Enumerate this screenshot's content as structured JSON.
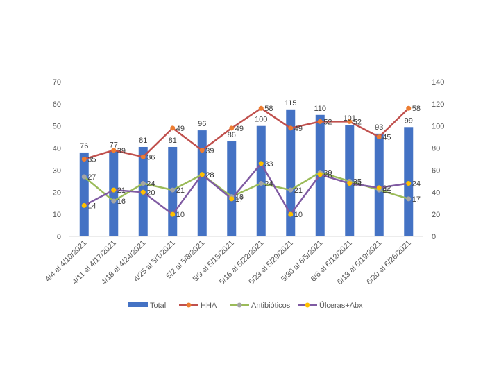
{
  "chart_data": {
    "type": "bar",
    "categories": [
      "4/4 al 4/10/2021",
      "4/11 al 4/17/2021",
      "4/18 al 4/24/2021",
      "4/25 al 5/1/2021",
      "5/2 al 5/8/2021",
      "5/9 al 5/15/2021",
      "5/16 al 5/22/2021",
      "5/23 al 5/29/2021",
      "5/30 al 6/5/2021",
      "6/6 al 6/12/2021",
      "6/13 al 6/19/2021",
      "6/20 al 6/26/2021"
    ],
    "series": [
      {
        "name": "Total",
        "type": "bar",
        "axis": "right",
        "color": "#4472C4",
        "values": [
          76,
          77,
          81,
          81,
          96,
          86,
          100,
          115,
          110,
          101,
          93,
          99
        ],
        "labels": [
          "76",
          "77",
          "81",
          "81",
          "96",
          "86",
          "100",
          "115",
          "110",
          "101",
          "93",
          "99"
        ]
      },
      {
        "name": "HHA",
        "type": "line",
        "axis": "left",
        "color": "#C0504D",
        "marker": "#ED7D31",
        "values": [
          35,
          39,
          36,
          49,
          39,
          49,
          58,
          49,
          52,
          52,
          45,
          58
        ],
        "labels": [
          "35",
          "39",
          "36",
          "49",
          "39",
          "49",
          "58",
          "49",
          "52",
          "52",
          "45",
          "58"
        ]
      },
      {
        "name": "Antibióticos",
        "type": "line",
        "axis": "left",
        "color": "#9BBB59",
        "marker": "#A5A5A5",
        "values": [
          27,
          16,
          24,
          21,
          28,
          18,
          24,
          21,
          29,
          25,
          21,
          17
        ],
        "labels": [
          "27",
          "16",
          "24",
          "21",
          "28",
          "18",
          "24",
          "21",
          "29",
          "25",
          "21",
          "17"
        ]
      },
      {
        "name": "Úlceras+Abx",
        "type": "line",
        "axis": "left",
        "color": "#7F5AA2",
        "marker": "#FFC000",
        "values": [
          14,
          21,
          20,
          10,
          28,
          17,
          33,
          10,
          28,
          24,
          22,
          24
        ],
        "labels": [
          "14",
          "21",
          "20",
          "10",
          "28",
          "17",
          "33",
          "10",
          "28",
          "24",
          "22",
          "24"
        ]
      }
    ],
    "y_left": {
      "min": 0,
      "max": 70,
      "step": 10,
      "ticks": [
        "0",
        "10",
        "20",
        "30",
        "40",
        "50",
        "60",
        "70"
      ]
    },
    "y_right": {
      "min": 0,
      "max": 140,
      "step": 20,
      "ticks": [
        "0",
        "20",
        "40",
        "60",
        "80",
        "100",
        "120",
        "140"
      ]
    },
    "grid": false,
    "legend": "bottom",
    "title": "",
    "xlabel": "",
    "ylabel": ""
  }
}
